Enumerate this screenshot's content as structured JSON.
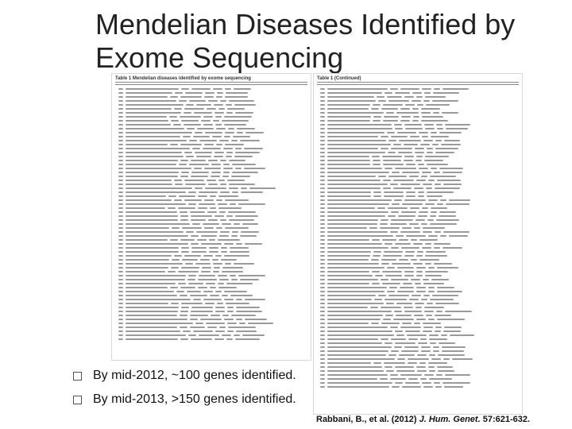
{
  "slide": {
    "title": "Mendelian Diseases Identified by Exome Sequencing",
    "bullets": [
      "By mid-2012, ~100 genes identified.",
      "By mid-2013, >150 genes identified."
    ],
    "citation": {
      "authors": "Rabbani, B., et al. (2012)",
      "journal": "J. Hum. Genet.",
      "volume": "57:621-632."
    },
    "bullet_icon": "checkbox-square-icon"
  },
  "tables": [
    {
      "heading": "Table 1 Mendelian diseases identified by exome sequencing"
    },
    {
      "heading": "Table 1 (Continued)"
    }
  ]
}
